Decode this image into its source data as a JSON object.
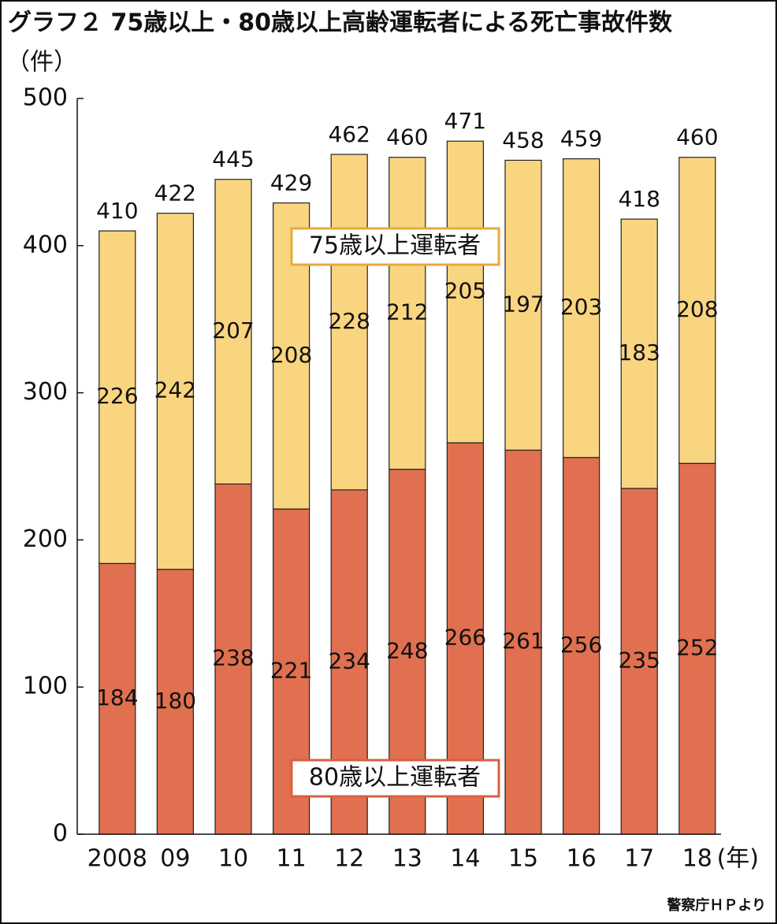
{
  "chart_data": {
    "type": "stacked_bar",
    "title": "グラフ２ 75歳以上・80歳以上高齢運転者による死亡事故件数",
    "y_unit": "（件）",
    "x_unit": "(年)",
    "source": "警察庁ＨＰより",
    "categories": [
      "2008",
      "09",
      "10",
      "11",
      "12",
      "13",
      "14",
      "15",
      "16",
      "17",
      "18"
    ],
    "series": [
      {
        "name": "80歳以上運転者",
        "color": "#e07050",
        "values": [
          184,
          180,
          238,
          221,
          234,
          248,
          266,
          261,
          256,
          235,
          252
        ]
      },
      {
        "name": "75歳以上運転者",
        "color": "#fad580",
        "values": [
          226,
          242,
          207,
          208,
          228,
          212,
          205,
          197,
          203,
          183,
          208
        ]
      }
    ],
    "totals": [
      410,
      422,
      445,
      429,
      462,
      460,
      471,
      458,
      459,
      418,
      460
    ],
    "ylim": [
      0,
      500
    ],
    "yticks": [
      0,
      100,
      200,
      300,
      400,
      500
    ],
    "grid": false
  }
}
